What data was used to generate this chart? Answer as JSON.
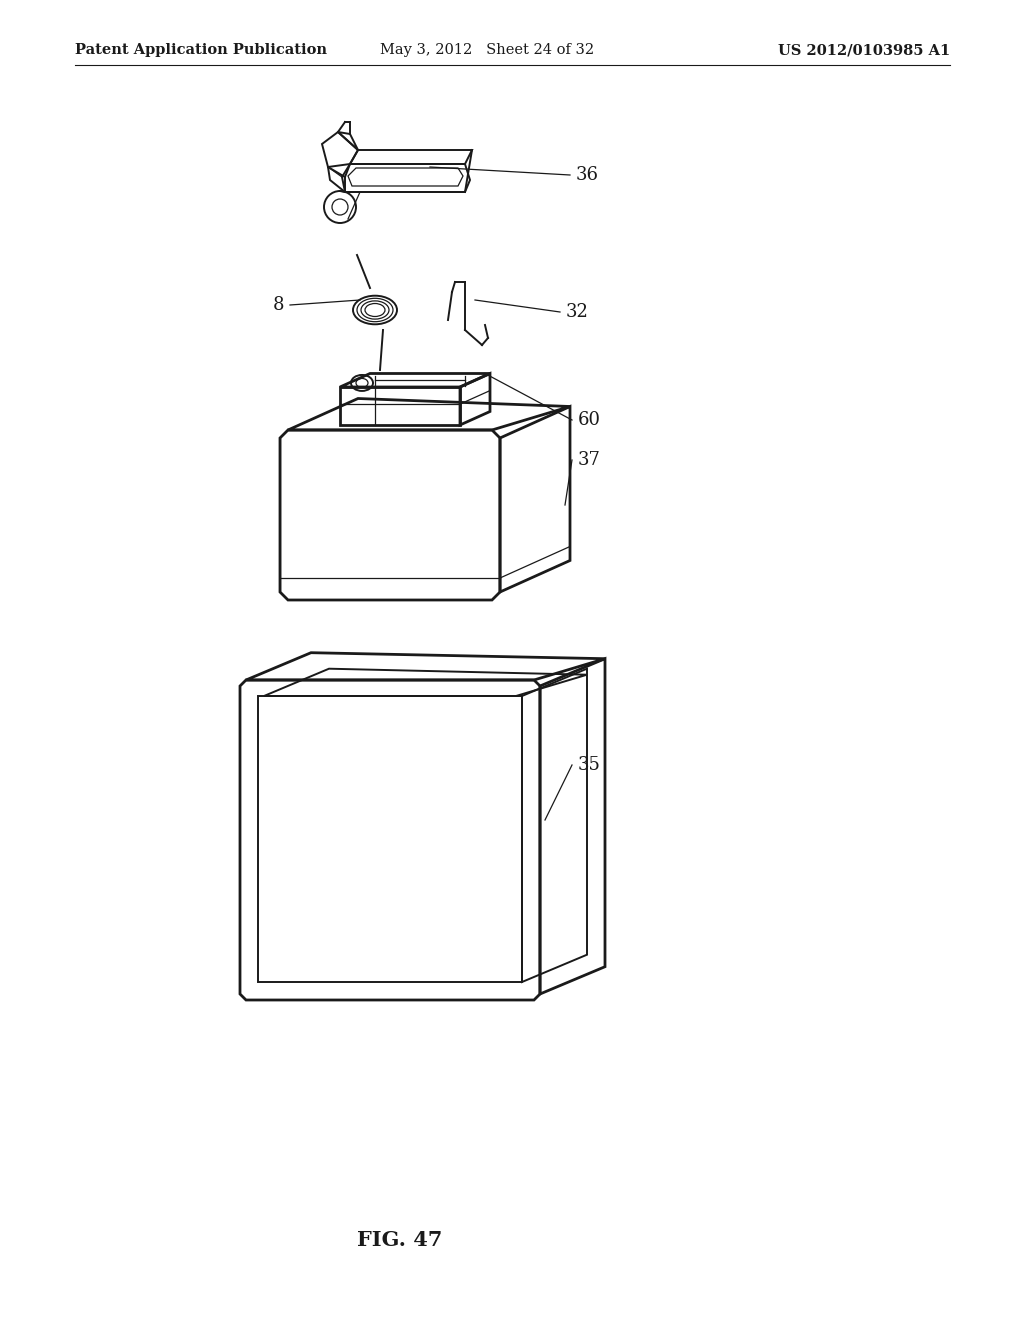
{
  "header_left": "Patent Application Publication",
  "header_mid": "May 3, 2012   Sheet 24 of 32",
  "header_right": "US 2012/0103985 A1",
  "fig_label": "FIG. 47",
  "bg_color": "#ffffff",
  "line_color": "#1a1a1a",
  "header_fontsize": 10.5,
  "label_fontsize": 13,
  "fig_label_fontsize": 15
}
